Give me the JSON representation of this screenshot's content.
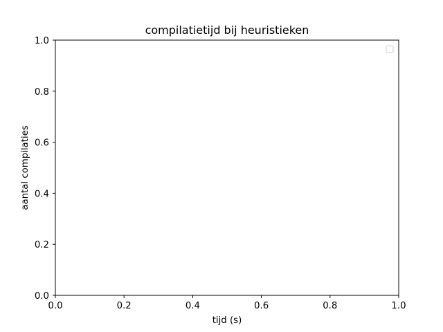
{
  "chart_data": {
    "type": "line",
    "title": "compilatietijd bij heuristieken",
    "xlabel": "tijd (s)",
    "ylabel": "aantal compilaties",
    "xlim": [
      0.0,
      1.0
    ],
    "ylim": [
      0.0,
      1.0
    ],
    "x_ticks": [
      "0.0",
      "0.2",
      "0.4",
      "0.6",
      "0.8",
      "1.0"
    ],
    "y_ticks": [
      "0.0",
      "0.2",
      "0.4",
      "0.6",
      "0.8",
      "1.0"
    ],
    "series": [],
    "grid": false,
    "legend": {
      "placement": "top-right",
      "entries": []
    },
    "colors": {
      "axis": "#000000",
      "background": "#ffffff",
      "legend_border": "#cccccc"
    }
  }
}
